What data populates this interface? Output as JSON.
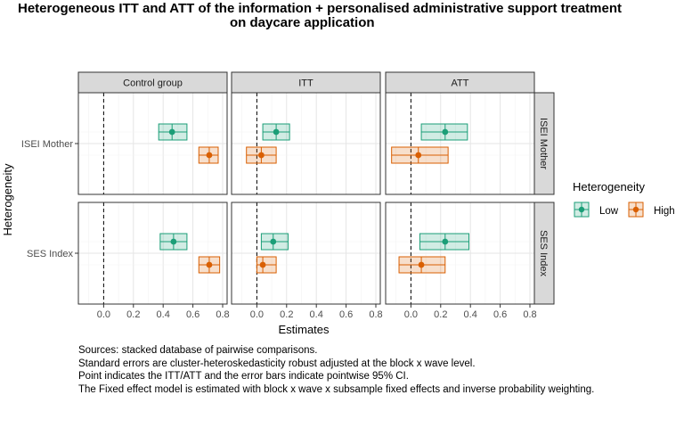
{
  "chart_data": {
    "type": "scatter",
    "title": "Heterogeneous ITT and ATT of the information + personalised administrative support treatment on daycare application",
    "title_lines": [
      "Heterogeneous ITT and ATT of the information + personalised administrative support treatment",
      "on daycare application"
    ],
    "xlabel": "Estimates",
    "ylabel": "Heterogeneity",
    "xlim": [
      -0.17,
      0.83
    ],
    "x_ticks": [
      "0.0",
      "0.2",
      "0.4",
      "0.6",
      "0.8"
    ],
    "x_tick_values": [
      0.0,
      0.2,
      0.4,
      0.6,
      0.8
    ],
    "grid": true,
    "reference_line": {
      "x": 0,
      "style": "dashed"
    },
    "facet_columns": [
      "Control group",
      "ITT",
      "ATT"
    ],
    "facet_rows": [
      "ISEI Mother",
      "SES Index"
    ],
    "legend": {
      "title": "Heterogeneity",
      "position": "right",
      "entries": [
        {
          "name": "Low",
          "color": "#1b9e77"
        },
        {
          "name": "High",
          "color": "#d95f02"
        }
      ]
    },
    "panels": [
      {
        "column": "Control group",
        "row": "ISEI Mother",
        "points": [
          {
            "group": "Low",
            "estimate": 0.46,
            "ci": [
              0.37,
              0.56
            ]
          },
          {
            "group": "High",
            "estimate": 0.71,
            "ci": [
              0.64,
              0.77
            ]
          }
        ]
      },
      {
        "column": "ITT",
        "row": "ISEI Mother",
        "points": [
          {
            "group": "Low",
            "estimate": 0.13,
            "ci": [
              0.04,
              0.22
            ]
          },
          {
            "group": "High",
            "estimate": 0.03,
            "ci": [
              -0.07,
              0.13
            ]
          }
        ]
      },
      {
        "column": "ATT",
        "row": "ISEI Mother",
        "points": [
          {
            "group": "Low",
            "estimate": 0.23,
            "ci": [
              0.07,
              0.38
            ]
          },
          {
            "group": "High",
            "estimate": 0.05,
            "ci": [
              -0.13,
              0.25
            ]
          }
        ]
      },
      {
        "column": "Control group",
        "row": "SES Index",
        "points": [
          {
            "group": "Low",
            "estimate": 0.47,
            "ci": [
              0.38,
              0.56
            ]
          },
          {
            "group": "High",
            "estimate": 0.71,
            "ci": [
              0.64,
              0.78
            ]
          }
        ]
      },
      {
        "column": "ITT",
        "row": "SES Index",
        "points": [
          {
            "group": "Low",
            "estimate": 0.11,
            "ci": [
              0.03,
              0.21
            ]
          },
          {
            "group": "High",
            "estimate": 0.04,
            "ci": [
              0.0,
              0.13
            ]
          }
        ]
      },
      {
        "column": "ATT",
        "row": "SES Index",
        "points": [
          {
            "group": "Low",
            "estimate": 0.23,
            "ci": [
              0.06,
              0.39
            ]
          },
          {
            "group": "High",
            "estimate": 0.07,
            "ci": [
              -0.08,
              0.23
            ]
          }
        ]
      }
    ]
  },
  "caption": [
    "Sources: stacked database of pairwise comparisons.",
    "Standard errors are cluster-heteroskedasticity robust adjusted at the block x wave level.",
    "Point indicates the ITT/ATT and the error bars indicate pointwise 95% CI.",
    "The Fixed effect model is estimated with block x wave x subsample fixed effects and inverse probability weighting."
  ]
}
